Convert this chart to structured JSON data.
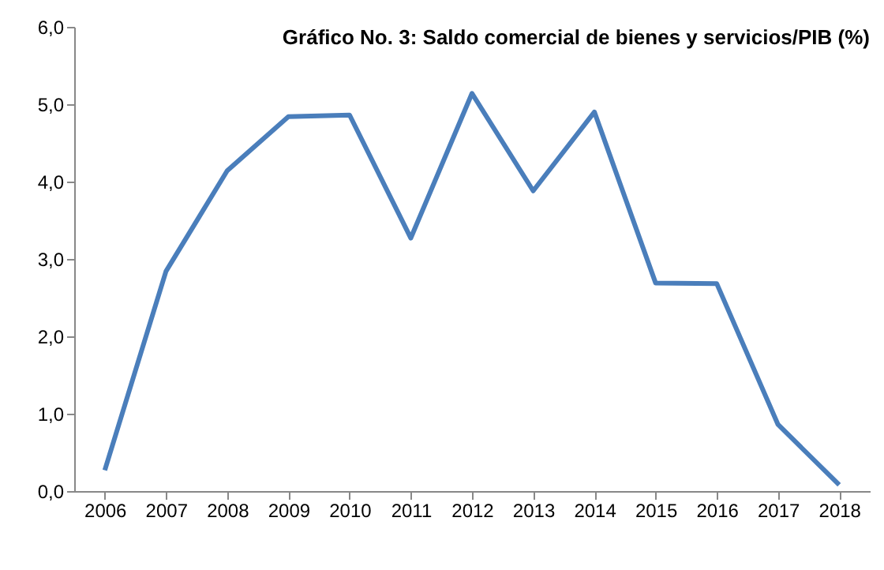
{
  "chart_data": {
    "type": "line",
    "title": "Gráfico No. 3:  Saldo comercial de bienes y servicios/PIB (%)",
    "categories": [
      "2006",
      "2007",
      "2008",
      "2009",
      "2010",
      "2011",
      "2012",
      "2013",
      "2014",
      "2015",
      "2016",
      "2017",
      "2018"
    ],
    "series": [
      {
        "color": "#4a7ebb",
        "values": [
          0.27,
          2.84,
          4.14,
          4.84,
          4.86,
          3.27,
          5.14,
          3.88,
          4.9,
          2.69,
          2.68,
          0.86,
          0.08
        ]
      }
    ],
    "ylim": [
      0,
      6
    ],
    "yticks": [
      {
        "value": 0,
        "label": "0,0"
      },
      {
        "value": 1,
        "label": "1,0"
      },
      {
        "value": 2,
        "label": "2,0"
      },
      {
        "value": 3,
        "label": "3,0"
      },
      {
        "value": 4,
        "label": "4,0"
      },
      {
        "value": 5,
        "label": "5,0"
      },
      {
        "value": 6,
        "label": "6,0"
      }
    ],
    "grid": false,
    "legend": false,
    "marker": "none",
    "line_style": "solid"
  }
}
